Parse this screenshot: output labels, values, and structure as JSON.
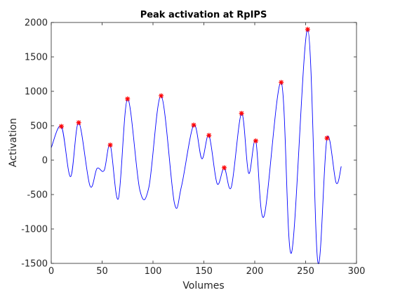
{
  "chart_data": {
    "type": "line",
    "title": "Peak activation at RpIPS",
    "xlabel": "Volumes",
    "ylabel": "Activation",
    "xlim": [
      0,
      300
    ],
    "ylim": [
      -1500,
      2000
    ],
    "xticks": [
      0,
      50,
      100,
      150,
      200,
      250,
      300
    ],
    "yticks": [
      -1500,
      -1000,
      -500,
      0,
      500,
      1000,
      1500,
      2000
    ],
    "grid": false,
    "colors": {
      "line": "#0000ff",
      "peak_marker": "#ff0000"
    },
    "series": [
      {
        "values": [
          [
            0,
            180
          ],
          [
            10,
            490
          ],
          [
            19,
            -240
          ],
          [
            27,
            545
          ],
          [
            38,
            -370
          ],
          [
            45,
            -120
          ],
          [
            52,
            -150
          ],
          [
            58,
            220
          ],
          [
            66,
            -560
          ],
          [
            75,
            890
          ],
          [
            87,
            -430
          ],
          [
            96,
            -390
          ],
          [
            108,
            935
          ],
          [
            121,
            -620
          ],
          [
            128,
            -380
          ],
          [
            140,
            510
          ],
          [
            148,
            20
          ],
          [
            155,
            360
          ],
          [
            163,
            -340
          ],
          [
            170,
            -110
          ],
          [
            177,
            -390
          ],
          [
            187,
            680
          ],
          [
            194,
            -190
          ],
          [
            201,
            280
          ],
          [
            209,
            -820
          ],
          [
            226,
            1130
          ],
          [
            236,
            -1350
          ],
          [
            252,
            1900
          ],
          [
            262,
            -1480
          ],
          [
            271,
            320
          ],
          [
            280,
            -330
          ],
          [
            285,
            -90
          ]
        ]
      },
      {
        "values": [
          [
            10,
            490
          ],
          [
            27,
            545
          ],
          [
            58,
            220
          ],
          [
            75,
            890
          ],
          [
            108,
            935
          ],
          [
            140,
            510
          ],
          [
            155,
            360
          ],
          [
            170,
            -110
          ],
          [
            187,
            680
          ],
          [
            201,
            280
          ],
          [
            226,
            1130
          ],
          [
            252,
            1900
          ],
          [
            271,
            320
          ]
        ]
      }
    ]
  }
}
